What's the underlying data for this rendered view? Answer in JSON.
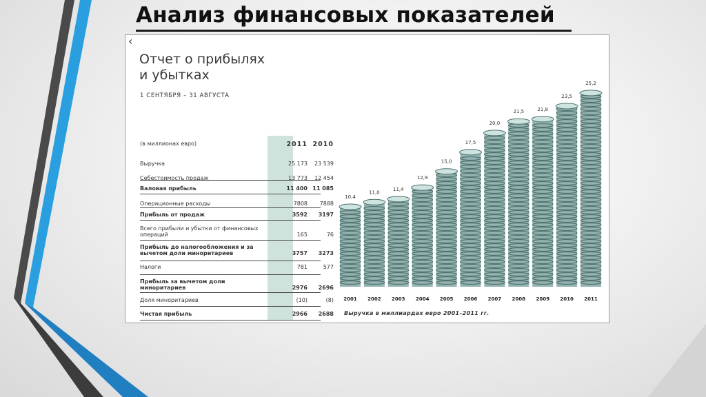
{
  "slide": {
    "title": "Анализ финансовых показателей"
  },
  "report": {
    "title_line1": "Отчет о прибылях",
    "title_line2": "и убытках",
    "period": "1 СЕНТЯБРЯ – 31 АВГУСТА",
    "units_label": "(в миллионах евро)",
    "col1_header": "2011",
    "col2_header": "2010",
    "rows": [
      {
        "label": "Выручка",
        "v2011": "25 173",
        "v2010": "23 539",
        "bold": false
      },
      {
        "label": "Себестоимость продаж",
        "v2011": "13 773",
        "v2010": "12 454",
        "bold": false
      },
      {
        "label": "Валовая прибыль",
        "v2011": "11 400",
        "v2010": "11 085",
        "bold": true
      },
      {
        "label": "Операционные расходы",
        "v2011": "7808",
        "v2010": "7888",
        "bold": false
      },
      {
        "label": "Прибыль от продаж",
        "v2011": "3592",
        "v2010": "3197",
        "bold": true
      },
      {
        "label": "Всего прибыли и убытки от финансовых операций",
        "v2011": "165",
        "v2010": "76",
        "bold": false
      },
      {
        "label": "Прибыль до налогообложения и за вычетом доли миноритариев",
        "v2011": "3757",
        "v2010": "3273",
        "bold": true
      },
      {
        "label": "Налоги",
        "v2011": "781",
        "v2010": "577",
        "bold": false
      },
      {
        "label": "Прибыль за вычетом доли миноритариев",
        "v2011": "2976",
        "v2010": "2696",
        "bold": true
      },
      {
        "label": "Доля миноритариев",
        "v2011": "(10)",
        "v2010": "(8)",
        "bold": false
      },
      {
        "label": "Чистая прибыль",
        "v2011": "2966",
        "v2010": "2688",
        "bold": true
      }
    ]
  },
  "colors": {
    "accent_blue": "#2a9fe0",
    "dark_stripe": "#4a4a4a",
    "highlight_col": "#cfe3dc",
    "bar_teal": "#7fa6a2"
  },
  "chart_data": {
    "type": "bar",
    "categories": [
      "2001",
      "2002",
      "2003",
      "2004",
      "2005",
      "2006",
      "2007",
      "2008",
      "2009",
      "2010",
      "2011"
    ],
    "values": [
      10.4,
      11.0,
      11.4,
      12.9,
      15.0,
      17.5,
      20.0,
      21.5,
      21.8,
      23.5,
      25.2
    ],
    "value_labels": [
      "10,4",
      "11,0",
      "11,4",
      "12,9",
      "15,0",
      "17,5",
      "20,0",
      "21,5",
      "21,8",
      "23,5",
      "25,2"
    ],
    "caption": "Выручка в миллиардах евро 2001–2011 гг.",
    "grid": false,
    "legend": "none"
  }
}
